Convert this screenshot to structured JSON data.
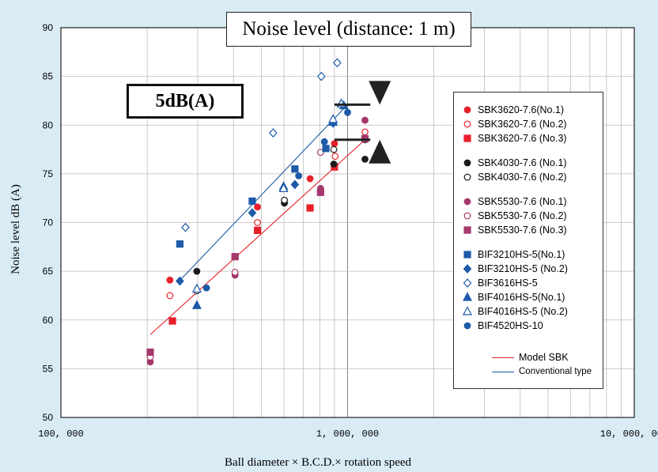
{
  "title": "Noise level (distance: 1 m)",
  "annotation": "5dB(A)",
  "chart_data": {
    "type": "scatter",
    "xscale": "log",
    "xlim": [
      100000,
      10000000
    ],
    "ylim": [
      50,
      90
    ],
    "xlabel": "Ball diameter × B.C.D.× rotation speed",
    "ylabel": "Noise level dB (A)",
    "xticks": [
      {
        "value": 100000,
        "label": "100, 000"
      },
      {
        "value": 1000000,
        "label": "1, 000, 000"
      },
      {
        "value": 10000000,
        "label": "10, 000, 000"
      }
    ],
    "yticks": [
      50,
      55,
      60,
      65,
      70,
      75,
      80,
      85,
      90
    ],
    "grid": true,
    "legend_position": "right",
    "series": [
      {
        "name": "SBK3620-7.6(No.1)",
        "marker": "circle",
        "filled": true,
        "color": "#e8202a",
        "points": [
          [
            240000,
            64.1
          ],
          [
            485000,
            71.6
          ],
          [
            740000,
            74.5
          ],
          [
            900000,
            78.1
          ]
        ]
      },
      {
        "name": "SBK3620-7.6 (No.2)",
        "marker": "circle",
        "filled": false,
        "color": "#e8202a",
        "points": [
          [
            240000,
            62.5
          ],
          [
            485000,
            70.0
          ],
          [
            905000,
            76.8
          ],
          [
            1150000,
            79.3
          ]
        ]
      },
      {
        "name": "SBK3620-7.6 (No.3)",
        "marker": "square",
        "filled": true,
        "color": "#e8202a",
        "points": [
          [
            245000,
            59.9
          ],
          [
            485000,
            69.2
          ],
          [
            740000,
            71.5
          ],
          [
            900000,
            75.7
          ]
        ]
      },
      {
        "name": "SBK4030-7.6 (No.1)",
        "marker": "circle",
        "filled": true,
        "color": "#1a1a1a",
        "points": [
          [
            298000,
            65.0
          ],
          [
            602000,
            72.0
          ],
          [
            895000,
            76.0
          ],
          [
            1150000,
            76.5
          ]
        ]
      },
      {
        "name": "SBK4030-7.6 (No.2)",
        "marker": "circle",
        "filled": false,
        "color": "#1a1a1a",
        "points": [
          [
            298000,
            63.0
          ],
          [
            602000,
            72.3
          ],
          [
            895000,
            77.5
          ],
          [
            1150000,
            78.5
          ]
        ]
      },
      {
        "name": "SBK5530-7.6 (No.1)",
        "marker": "circle",
        "filled": true,
        "color": "#a4376b",
        "points": [
          [
            205000,
            55.7
          ],
          [
            405000,
            64.6
          ],
          [
            805000,
            73.5
          ],
          [
            1150000,
            80.5
          ]
        ]
      },
      {
        "name": "SBK5530-7.6 (No.2)",
        "marker": "circle",
        "filled": false,
        "color": "#a4376b",
        "points": [
          [
            205000,
            56.2
          ],
          [
            405000,
            64.9
          ],
          [
            805000,
            77.2
          ],
          [
            1150000,
            78.7
          ]
        ]
      },
      {
        "name": "SBK5530-7.6 (No.3)",
        "marker": "square",
        "filled": true,
        "color": "#a4376b",
        "points": [
          [
            205000,
            56.7
          ],
          [
            405000,
            66.5
          ],
          [
            805000,
            73.1
          ],
          [
            1150000,
            78.6
          ]
        ]
      },
      {
        "name": "BIF3210HS-5(No.1)",
        "marker": "square",
        "filled": true,
        "color": "#1d5aa8",
        "points": [
          [
            260000,
            67.8
          ],
          [
            465000,
            72.2
          ],
          [
            655000,
            75.5
          ],
          [
            840000,
            77.6
          ]
        ]
      },
      {
        "name": "BIF3210HS-5 (No.2)",
        "marker": "diamond",
        "filled": true,
        "color": "#1d5aa8",
        "points": [
          [
            260000,
            64.0
          ],
          [
            465000,
            71.0
          ],
          [
            655000,
            73.9
          ],
          [
            890000,
            80.2
          ]
        ]
      },
      {
        "name": "BIF3616HS-5",
        "marker": "diamond",
        "filled": false,
        "color": "#1d5aa8",
        "points": [
          [
            272000,
            69.5
          ],
          [
            550000,
            79.2
          ],
          [
            810000,
            85.0
          ],
          [
            920000,
            86.4
          ]
        ]
      },
      {
        "name": "BIF4016HS-5(No.1)",
        "marker": "triangle",
        "filled": true,
        "color": "#1d5aa8",
        "points": [
          [
            298000,
            61.5
          ],
          [
            598000,
            73.7
          ],
          [
            890000,
            80.3
          ],
          [
            970000,
            82.0
          ]
        ]
      },
      {
        "name": "BIF4016HS-5 (No.2)",
        "marker": "triangle",
        "filled": false,
        "color": "#1d5aa8",
        "points": [
          [
            298000,
            63.2
          ],
          [
            598000,
            73.5
          ],
          [
            890000,
            80.6
          ],
          [
            950000,
            82.2
          ]
        ]
      },
      {
        "name": "BIF4520HS-10",
        "marker": "circle",
        "filled": true,
        "color": "#1d5aa8",
        "points": [
          [
            322000,
            63.3
          ],
          [
            675000,
            74.8
          ],
          [
            830000,
            78.3
          ],
          [
            1000000,
            81.3
          ]
        ]
      }
    ],
    "fit_lines": [
      {
        "name": "Model SBK",
        "color": "#e8202a",
        "points": [
          [
            205000,
            58.5
          ],
          [
            1150000,
            78.5
          ]
        ]
      },
      {
        "name": "Conventional type",
        "color": "#1d5aa8",
        "points": [
          [
            255000,
            63.8
          ],
          [
            1000000,
            82.1
          ]
        ]
      }
    ]
  }
}
